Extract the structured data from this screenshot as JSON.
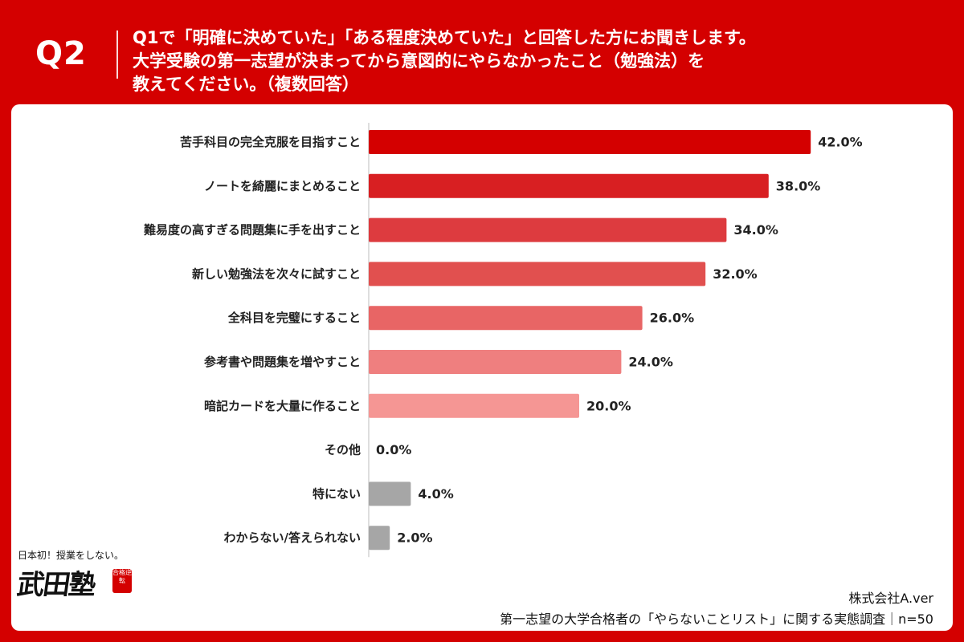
{
  "header": {
    "q_number": "Q2",
    "question_line1": "Q1で「明確に決めていた」「ある程度決めていた」と回答した方にお聞きします。",
    "question_line2": "大学受験の第一志望が決まってから意図的にやらなかったこと（勉強法）を",
    "question_line3": "教えてください。（複数回答）"
  },
  "logo": {
    "tagline": "日本初！授業をしない。",
    "name": "武田塾",
    "seal_text": "合格逆転"
  },
  "footer": {
    "company": "株式会社A.ver",
    "survey": "第一志望の大学合格者の「やらないことリスト」に関する実態調査｜n=50"
  },
  "colors": {
    "brand_red": "#d40000",
    "gray_bar": "#a6a6a6"
  },
  "chart_data": {
    "type": "bar",
    "orientation": "horizontal",
    "unit": "%",
    "xlim": [
      0,
      50
    ],
    "grid": false,
    "categories": [
      "苦手科目の完全克服を目指すこと",
      "ノートを綺麗にまとめること",
      "難易度の高すぎる問題集に手を出すこと",
      "新しい勉強法を次々に試すこと",
      "全科目を完璧にすること",
      "参考書や問題集を増やすこと",
      "暗記カードを大量に作ること",
      "その他",
      "特にない",
      "わからない/答えられない"
    ],
    "values": [
      42.0,
      38.0,
      34.0,
      32.0,
      26.0,
      24.0,
      20.0,
      0.0,
      4.0,
      2.0
    ],
    "value_labels": [
      "42.0%",
      "38.0%",
      "34.0%",
      "32.0%",
      "26.0%",
      "24.0%",
      "20.0%",
      "0.0%",
      "4.0%",
      "2.0%"
    ],
    "bar_colors": [
      "#d40000",
      "#d81f22",
      "#dd3b3f",
      "#e1504f",
      "#e86565",
      "#ef7f7f",
      "#f59694",
      "#a6a6a6",
      "#a6a6a6",
      "#a6a6a6"
    ]
  }
}
